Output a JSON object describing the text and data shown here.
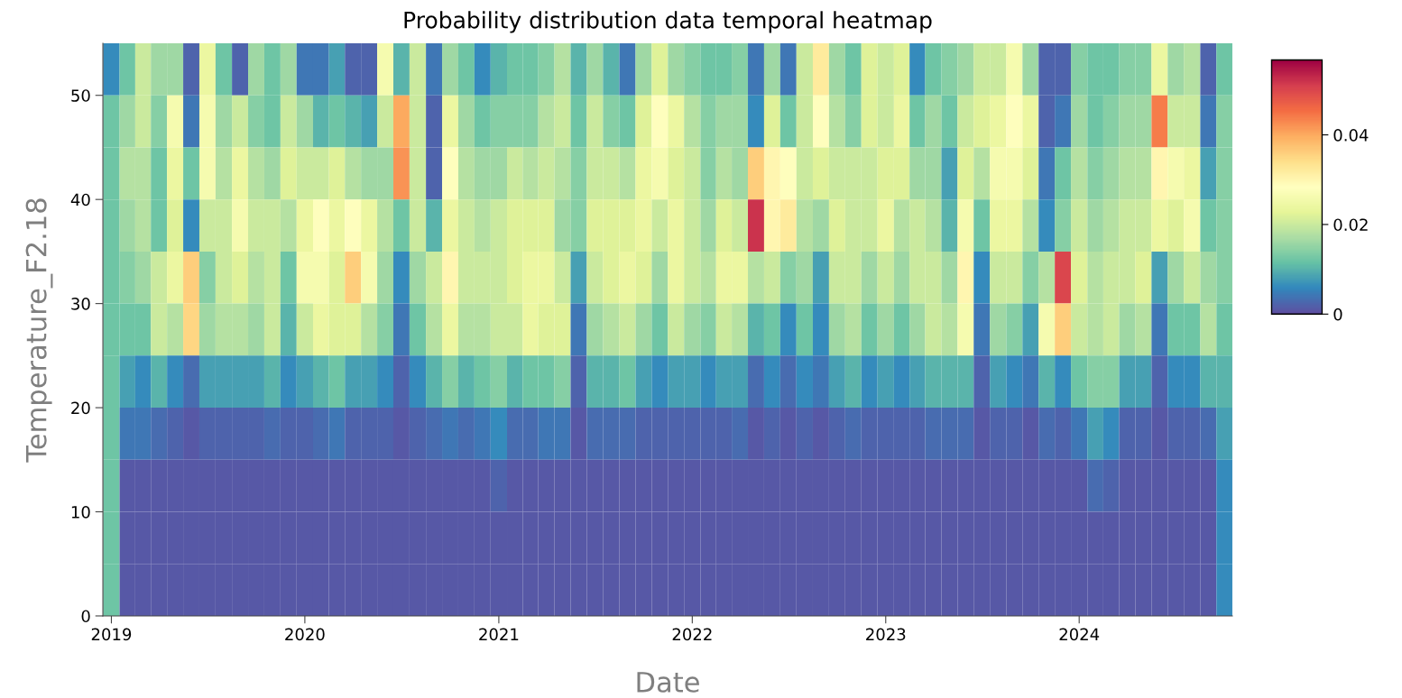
{
  "chart_data": {
    "type": "heatmap",
    "title": "Probability distribution data temporal heatmap",
    "xlabel": "Date",
    "ylabel": "Temperature_F2.18",
    "x": [
      "2019-01",
      "2019-02",
      "2019-03",
      "2019-04",
      "2019-05",
      "2019-06",
      "2019-07",
      "2019-08",
      "2019-09",
      "2019-10",
      "2019-11",
      "2019-12",
      "2020-01",
      "2020-02",
      "2020-03",
      "2020-04",
      "2020-05",
      "2020-06",
      "2020-07",
      "2020-08",
      "2020-09",
      "2020-10",
      "2020-11",
      "2020-12",
      "2021-01",
      "2021-02",
      "2021-03",
      "2021-04",
      "2021-05",
      "2021-06",
      "2021-07",
      "2021-08",
      "2021-09",
      "2021-10",
      "2021-11",
      "2021-12",
      "2022-01",
      "2022-02",
      "2022-03",
      "2022-04",
      "2022-05",
      "2022-06",
      "2022-07",
      "2022-08",
      "2022-09",
      "2022-10",
      "2022-11",
      "2022-12",
      "2023-01",
      "2023-02",
      "2023-03",
      "2023-04",
      "2023-05",
      "2023-06",
      "2023-07",
      "2023-08",
      "2023-09",
      "2023-10",
      "2023-11",
      "2023-12",
      "2024-01",
      "2024-02",
      "2024-03",
      "2024-04",
      "2024-05",
      "2024-06",
      "2024-07",
      "2024-08",
      "2024-09",
      "2024-10"
    ],
    "y": [
      52.5,
      47.5,
      42.5,
      37.5,
      32.5,
      27.5,
      22.5,
      17.5,
      12.5,
      7.5,
      2.5
    ],
    "cells": [
      [
        0.006,
        0.012,
        0.02,
        0.016,
        0.016,
        0.002,
        0.024,
        0.012,
        0.002,
        0.016,
        0.012,
        0.016,
        0.004,
        0.004,
        0.008,
        0.002,
        0.002,
        0.026,
        0.01,
        0.02,
        0.004,
        0.016,
        0.012,
        0.006,
        0.01,
        0.012,
        0.012,
        0.014,
        0.018,
        0.01,
        0.016,
        0.01,
        0.004,
        0.016,
        0.022,
        0.016,
        0.014,
        0.012,
        0.012,
        0.014,
        0.004,
        0.016,
        0.004,
        0.02,
        0.032,
        0.016,
        0.012,
        0.022,
        0.02,
        0.022,
        0.006,
        0.012,
        0.014,
        0.016,
        0.02,
        0.02,
        0.026,
        0.016,
        0.002,
        0.002,
        0.014,
        0.012,
        0.012,
        0.014,
        0.014,
        0.024,
        0.016,
        0.018,
        0.002,
        0.012
      ],
      [
        0.012,
        0.016,
        0.02,
        0.014,
        0.026,
        0.004,
        0.026,
        0.016,
        0.02,
        0.014,
        0.012,
        0.02,
        0.016,
        0.01,
        0.012,
        0.01,
        0.008,
        0.02,
        0.04,
        0.02,
        0.002,
        0.024,
        0.016,
        0.012,
        0.014,
        0.014,
        0.014,
        0.018,
        0.02,
        0.012,
        0.02,
        0.014,
        0.012,
        0.022,
        0.028,
        0.024,
        0.018,
        0.014,
        0.016,
        0.016,
        0.006,
        0.022,
        0.012,
        0.02,
        0.028,
        0.018,
        0.014,
        0.022,
        0.02,
        0.024,
        0.012,
        0.016,
        0.012,
        0.02,
        0.022,
        0.024,
        0.028,
        0.024,
        0.002,
        0.004,
        0.016,
        0.012,
        0.014,
        0.016,
        0.016,
        0.044,
        0.02,
        0.02,
        0.004,
        0.014
      ],
      [
        0.012,
        0.018,
        0.018,
        0.012,
        0.024,
        0.012,
        0.026,
        0.018,
        0.024,
        0.018,
        0.016,
        0.022,
        0.02,
        0.02,
        0.022,
        0.018,
        0.016,
        0.016,
        0.042,
        0.02,
        0.002,
        0.028,
        0.018,
        0.016,
        0.016,
        0.02,
        0.018,
        0.02,
        0.018,
        0.014,
        0.02,
        0.02,
        0.018,
        0.024,
        0.026,
        0.022,
        0.02,
        0.014,
        0.018,
        0.016,
        0.036,
        0.03,
        0.028,
        0.02,
        0.022,
        0.02,
        0.02,
        0.02,
        0.022,
        0.022,
        0.016,
        0.016,
        0.008,
        0.022,
        0.018,
        0.026,
        0.026,
        0.022,
        0.004,
        0.012,
        0.018,
        0.014,
        0.016,
        0.018,
        0.018,
        0.03,
        0.026,
        0.024,
        0.008,
        0.014
      ],
      [
        0.012,
        0.016,
        0.018,
        0.012,
        0.022,
        0.006,
        0.02,
        0.02,
        0.026,
        0.02,
        0.02,
        0.018,
        0.024,
        0.028,
        0.024,
        0.028,
        0.024,
        0.018,
        0.012,
        0.02,
        0.01,
        0.024,
        0.02,
        0.018,
        0.02,
        0.022,
        0.022,
        0.022,
        0.016,
        0.014,
        0.022,
        0.022,
        0.022,
        0.024,
        0.02,
        0.024,
        0.02,
        0.016,
        0.022,
        0.02,
        0.052,
        0.03,
        0.032,
        0.018,
        0.016,
        0.022,
        0.02,
        0.02,
        0.024,
        0.018,
        0.02,
        0.018,
        0.01,
        0.026,
        0.012,
        0.024,
        0.024,
        0.018,
        0.006,
        0.014,
        0.02,
        0.016,
        0.018,
        0.02,
        0.02,
        0.024,
        0.022,
        0.026,
        0.012,
        0.014
      ],
      [
        0.012,
        0.014,
        0.016,
        0.02,
        0.024,
        0.036,
        0.014,
        0.02,
        0.022,
        0.018,
        0.02,
        0.012,
        0.026,
        0.026,
        0.022,
        0.036,
        0.026,
        0.016,
        0.006,
        0.016,
        0.02,
        0.03,
        0.02,
        0.02,
        0.02,
        0.022,
        0.024,
        0.024,
        0.02,
        0.008,
        0.02,
        0.022,
        0.024,
        0.022,
        0.016,
        0.024,
        0.02,
        0.018,
        0.024,
        0.024,
        0.018,
        0.02,
        0.014,
        0.016,
        0.008,
        0.02,
        0.02,
        0.016,
        0.02,
        0.016,
        0.02,
        0.02,
        0.016,
        0.03,
        0.006,
        0.02,
        0.02,
        0.014,
        0.018,
        0.05,
        0.022,
        0.018,
        0.02,
        0.02,
        0.022,
        0.008,
        0.016,
        0.02,
        0.016,
        0.014
      ],
      [
        0.012,
        0.012,
        0.012,
        0.02,
        0.018,
        0.035,
        0.016,
        0.018,
        0.018,
        0.016,
        0.02,
        0.01,
        0.02,
        0.024,
        0.022,
        0.022,
        0.018,
        0.014,
        0.004,
        0.012,
        0.018,
        0.024,
        0.018,
        0.018,
        0.02,
        0.02,
        0.024,
        0.022,
        0.022,
        0.004,
        0.016,
        0.018,
        0.02,
        0.016,
        0.012,
        0.02,
        0.016,
        0.014,
        0.02,
        0.018,
        0.01,
        0.012,
        0.006,
        0.012,
        0.006,
        0.016,
        0.018,
        0.012,
        0.016,
        0.012,
        0.016,
        0.02,
        0.018,
        0.026,
        0.004,
        0.016,
        0.014,
        0.008,
        0.026,
        0.036,
        0.02,
        0.018,
        0.02,
        0.016,
        0.018,
        0.004,
        0.012,
        0.012,
        0.018,
        0.012
      ],
      [
        0.012,
        0.008,
        0.006,
        0.01,
        0.006,
        0.003,
        0.008,
        0.008,
        0.008,
        0.008,
        0.01,
        0.006,
        0.008,
        0.01,
        0.012,
        0.008,
        0.008,
        0.006,
        0.002,
        0.006,
        0.01,
        0.014,
        0.01,
        0.012,
        0.014,
        0.01,
        0.012,
        0.012,
        0.014,
        0.002,
        0.01,
        0.01,
        0.012,
        0.008,
        0.006,
        0.008,
        0.008,
        0.006,
        0.008,
        0.008,
        0.003,
        0.006,
        0.003,
        0.006,
        0.004,
        0.008,
        0.01,
        0.006,
        0.008,
        0.006,
        0.008,
        0.01,
        0.01,
        0.01,
        0.002,
        0.008,
        0.006,
        0.004,
        0.01,
        0.006,
        0.012,
        0.014,
        0.014,
        0.008,
        0.008,
        0.002,
        0.006,
        0.006,
        0.01,
        0.01
      ],
      [
        0.012,
        0.004,
        0.004,
        0.003,
        0.002,
        0.001,
        0.002,
        0.002,
        0.002,
        0.002,
        0.003,
        0.002,
        0.002,
        0.003,
        0.004,
        0.002,
        0.002,
        0.002,
        0.001,
        0.002,
        0.003,
        0.004,
        0.003,
        0.004,
        0.006,
        0.003,
        0.003,
        0.004,
        0.004,
        0.001,
        0.003,
        0.003,
        0.003,
        0.002,
        0.002,
        0.002,
        0.002,
        0.002,
        0.002,
        0.003,
        0.001,
        0.002,
        0.001,
        0.002,
        0.001,
        0.002,
        0.003,
        0.002,
        0.002,
        0.002,
        0.002,
        0.003,
        0.003,
        0.003,
        0.001,
        0.002,
        0.002,
        0.001,
        0.003,
        0.002,
        0.004,
        0.008,
        0.006,
        0.002,
        0.002,
        0.001,
        0.002,
        0.002,
        0.003,
        0.008
      ],
      [
        0.012,
        0.001,
        0.001,
        0.001,
        0.001,
        0.001,
        0.001,
        0.001,
        0.001,
        0.001,
        0.001,
        0.001,
        0.001,
        0.001,
        0.001,
        0.001,
        0.001,
        0.001,
        0.001,
        0.001,
        0.001,
        0.001,
        0.001,
        0.001,
        0.002,
        0.001,
        0.001,
        0.001,
        0.001,
        0.001,
        0.001,
        0.001,
        0.001,
        0.001,
        0.001,
        0.001,
        0.001,
        0.001,
        0.001,
        0.001,
        0.001,
        0.001,
        0.001,
        0.001,
        0.001,
        0.001,
        0.001,
        0.001,
        0.001,
        0.001,
        0.001,
        0.001,
        0.001,
        0.001,
        0.001,
        0.001,
        0.001,
        0.001,
        0.001,
        0.001,
        0.001,
        0.003,
        0.002,
        0.001,
        0.001,
        0.001,
        0.001,
        0.001,
        0.001,
        0.006
      ],
      [
        0.012,
        0.001,
        0.001,
        0.001,
        0.001,
        0.001,
        0.001,
        0.001,
        0.001,
        0.001,
        0.001,
        0.001,
        0.001,
        0.001,
        0.001,
        0.001,
        0.001,
        0.001,
        0.001,
        0.001,
        0.001,
        0.001,
        0.001,
        0.001,
        0.001,
        0.001,
        0.001,
        0.001,
        0.001,
        0.001,
        0.001,
        0.001,
        0.001,
        0.001,
        0.001,
        0.001,
        0.001,
        0.001,
        0.001,
        0.001,
        0.001,
        0.001,
        0.001,
        0.001,
        0.001,
        0.001,
        0.001,
        0.001,
        0.001,
        0.001,
        0.001,
        0.001,
        0.001,
        0.001,
        0.001,
        0.001,
        0.001,
        0.001,
        0.001,
        0.001,
        0.001,
        0.001,
        0.001,
        0.001,
        0.001,
        0.001,
        0.001,
        0.001,
        0.001,
        0.006
      ],
      [
        0.012,
        0.001,
        0.001,
        0.001,
        0.001,
        0.001,
        0.001,
        0.001,
        0.001,
        0.001,
        0.001,
        0.001,
        0.001,
        0.001,
        0.001,
        0.001,
        0.001,
        0.001,
        0.001,
        0.001,
        0.001,
        0.001,
        0.001,
        0.001,
        0.001,
        0.001,
        0.001,
        0.001,
        0.001,
        0.001,
        0.001,
        0.001,
        0.001,
        0.001,
        0.001,
        0.001,
        0.001,
        0.001,
        0.001,
        0.001,
        0.001,
        0.001,
        0.001,
        0.001,
        0.001,
        0.001,
        0.001,
        0.001,
        0.001,
        0.001,
        0.001,
        0.001,
        0.001,
        0.001,
        0.001,
        0.001,
        0.001,
        0.001,
        0.001,
        0.001,
        0.001,
        0.001,
        0.001,
        0.001,
        0.001,
        0.001,
        0.001,
        0.001,
        0.001,
        0.006
      ]
    ],
    "xlim": [
      "2018-12-16",
      "2024-10-16"
    ],
    "xticks": [
      {
        "value": "2019-01-01",
        "label": "2019"
      },
      {
        "value": "2020-01-01",
        "label": "2020"
      },
      {
        "value": "2021-01-01",
        "label": "2021"
      },
      {
        "value": "2022-01-01",
        "label": "2022"
      },
      {
        "value": "2023-01-01",
        "label": "2023"
      },
      {
        "value": "2024-01-01",
        "label": "2024"
      }
    ],
    "ylim": [
      0,
      55
    ],
    "yticks": [
      0,
      10,
      20,
      30,
      40,
      50
    ],
    "clim": [
      0,
      0.0567
    ],
    "cticks": [
      0,
      0.02,
      0.04
    ]
  }
}
